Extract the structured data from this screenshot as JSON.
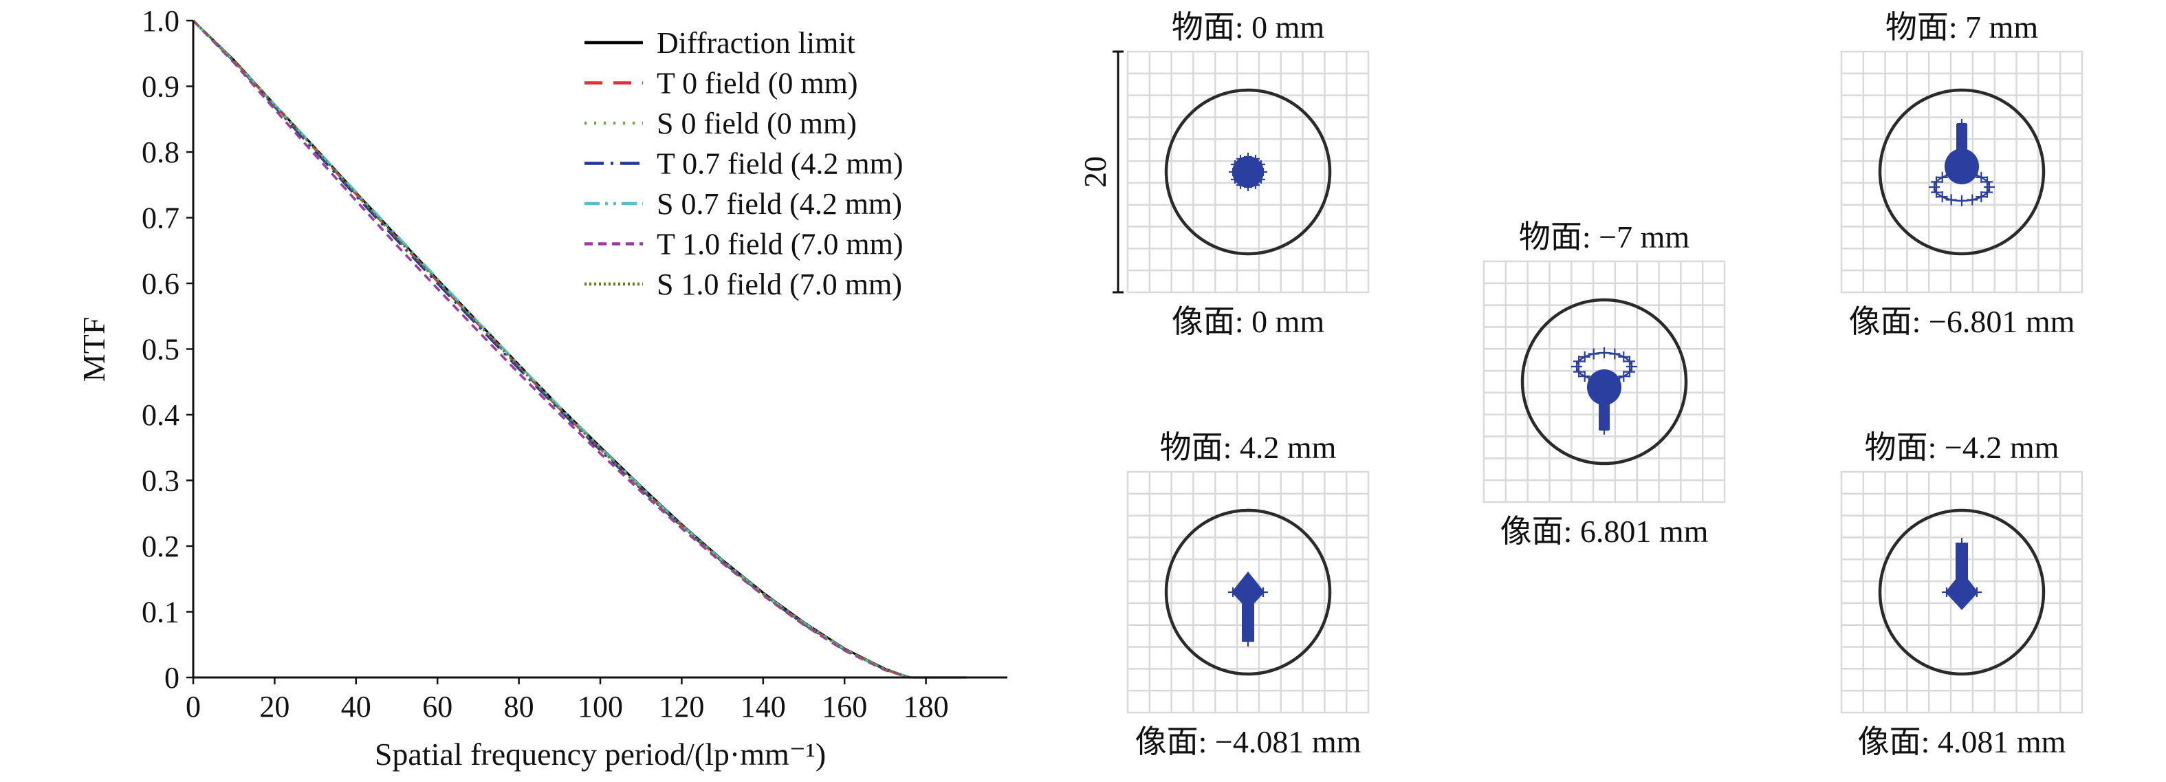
{
  "chart_data": [
    {
      "type": "line",
      "title": "",
      "xlabel": "Spatial frequency period/(lp·mm⁻¹)",
      "ylabel": "MTF",
      "xlim": [
        0,
        200
      ],
      "ylim": [
        0,
        1.0
      ],
      "x_ticks": [
        "0",
        "20",
        "40",
        "60",
        "80",
        "100",
        "120",
        "140",
        "160",
        "180"
      ],
      "y_ticks": [
        "0",
        "0.1",
        "0.2",
        "0.3",
        "0.4",
        "0.5",
        "0.6",
        "0.7",
        "0.8",
        "0.9",
        "1.0"
      ],
      "grid": false,
      "legend_position": "top-right",
      "series": [
        {
          "name": "Diffraction limit",
          "color": "#000000",
          "dash": "solid",
          "points": [
            [
              0,
              1.0
            ],
            [
              10,
              0.94
            ],
            [
              20,
              0.872
            ],
            [
              30,
              0.806
            ],
            [
              40,
              0.738
            ],
            [
              50,
              0.672
            ],
            [
              60,
              0.606
            ],
            [
              70,
              0.541
            ],
            [
              80,
              0.476
            ],
            [
              90,
              0.412
            ],
            [
              100,
              0.351
            ],
            [
              110,
              0.291
            ],
            [
              120,
              0.233
            ],
            [
              130,
              0.179
            ],
            [
              140,
              0.129
            ],
            [
              150,
              0.084
            ],
            [
              160,
              0.044
            ],
            [
              170,
              0.013
            ],
            [
              176,
              0.0
            ],
            [
              190,
              0.0
            ]
          ]
        },
        {
          "name": "T 0 field (0 mm)",
          "color": "#e0303a",
          "dash": "long-dash",
          "points": [
            [
              0,
              1.0
            ],
            [
              10,
              0.939
            ],
            [
              20,
              0.871
            ],
            [
              30,
              0.804
            ],
            [
              40,
              0.736
            ],
            [
              50,
              0.669
            ],
            [
              60,
              0.603
            ],
            [
              70,
              0.538
            ],
            [
              80,
              0.473
            ],
            [
              90,
              0.409
            ],
            [
              100,
              0.348
            ],
            [
              110,
              0.288
            ],
            [
              120,
              0.231
            ],
            [
              130,
              0.177
            ],
            [
              140,
              0.127
            ],
            [
              150,
              0.082
            ],
            [
              160,
              0.043
            ],
            [
              170,
              0.012
            ],
            [
              176,
              0.0
            ]
          ]
        },
        {
          "name": "S 0 field (0 mm)",
          "color": "#5db33a",
          "dash": "dotted",
          "points": [
            [
              0,
              1.0
            ],
            [
              10,
              0.939
            ],
            [
              20,
              0.871
            ],
            [
              30,
              0.804
            ],
            [
              40,
              0.736
            ],
            [
              50,
              0.669
            ],
            [
              60,
              0.603
            ],
            [
              70,
              0.538
            ],
            [
              80,
              0.473
            ],
            [
              90,
              0.409
            ],
            [
              100,
              0.348
            ],
            [
              110,
              0.288
            ],
            [
              120,
              0.231
            ],
            [
              130,
              0.177
            ],
            [
              140,
              0.127
            ],
            [
              150,
              0.082
            ],
            [
              160,
              0.043
            ],
            [
              170,
              0.012
            ],
            [
              176,
              0.0
            ]
          ]
        },
        {
          "name": "T 0.7 field (4.2 mm)",
          "color": "#1f3a93",
          "dash": "dash-dot",
          "points": [
            [
              0,
              1.0
            ],
            [
              10,
              0.938
            ],
            [
              20,
              0.869
            ],
            [
              30,
              0.801
            ],
            [
              40,
              0.733
            ],
            [
              50,
              0.666
            ],
            [
              60,
              0.6
            ],
            [
              70,
              0.535
            ],
            [
              80,
              0.47
            ],
            [
              90,
              0.407
            ],
            [
              100,
              0.346
            ],
            [
              110,
              0.287
            ],
            [
              120,
              0.23
            ],
            [
              130,
              0.176
            ],
            [
              140,
              0.126
            ],
            [
              150,
              0.081
            ],
            [
              160,
              0.042
            ],
            [
              170,
              0.012
            ],
            [
              176,
              0.0
            ]
          ]
        },
        {
          "name": "S 0.7 field (4.2 mm)",
          "color": "#4fc1c9",
          "dash": "dash-dot-dot",
          "points": [
            [
              0,
              1.0
            ],
            [
              10,
              0.939
            ],
            [
              20,
              0.872
            ],
            [
              30,
              0.806
            ],
            [
              40,
              0.739
            ],
            [
              50,
              0.673
            ],
            [
              60,
              0.607
            ],
            [
              70,
              0.541
            ],
            [
              80,
              0.476
            ],
            [
              90,
              0.412
            ],
            [
              100,
              0.35
            ],
            [
              110,
              0.29
            ],
            [
              120,
              0.232
            ],
            [
              130,
              0.178
            ],
            [
              140,
              0.128
            ],
            [
              150,
              0.083
            ],
            [
              160,
              0.043
            ],
            [
              170,
              0.012
            ],
            [
              176,
              0.0
            ]
          ]
        },
        {
          "name": "T 1.0 field (7.0 mm)",
          "color": "#9b3ea0",
          "dash": "short-dash",
          "points": [
            [
              0,
              1.0
            ],
            [
              10,
              0.936
            ],
            [
              20,
              0.865
            ],
            [
              30,
              0.795
            ],
            [
              40,
              0.726
            ],
            [
              50,
              0.658
            ],
            [
              60,
              0.592
            ],
            [
              70,
              0.527
            ],
            [
              80,
              0.463
            ],
            [
              90,
              0.401
            ],
            [
              100,
              0.341
            ],
            [
              110,
              0.283
            ],
            [
              120,
              0.227
            ],
            [
              130,
              0.174
            ],
            [
              140,
              0.125
            ],
            [
              150,
              0.08
            ],
            [
              160,
              0.041
            ],
            [
              170,
              0.011
            ],
            [
              176,
              0.0
            ]
          ]
        },
        {
          "name": "S 1.0 field (7.0 mm)",
          "color": "#6b7a1f",
          "dash": "fine-dotted",
          "points": [
            [
              0,
              1.0
            ],
            [
              10,
              0.939
            ],
            [
              20,
              0.871
            ],
            [
              30,
              0.804
            ],
            [
              40,
              0.736
            ],
            [
              50,
              0.669
            ],
            [
              60,
              0.603
            ],
            [
              70,
              0.538
            ],
            [
              80,
              0.473
            ],
            [
              90,
              0.409
            ],
            [
              100,
              0.348
            ],
            [
              110,
              0.288
            ],
            [
              120,
              0.231
            ],
            [
              130,
              0.177
            ],
            [
              140,
              0.127
            ],
            [
              150,
              0.082
            ],
            [
              160,
              0.043
            ],
            [
              170,
              0.012
            ],
            [
              176,
              0.0
            ]
          ]
        }
      ]
    },
    {
      "type": "spot-diagrams",
      "scale_label": "20",
      "grid": true,
      "panels": [
        {
          "id": "spot-field-0",
          "object_label": "物面: 0 mm",
          "image_label": "像面: 0 mm",
          "shape": "dot"
        },
        {
          "id": "spot-field-pos4-2",
          "object_label": "物面: 4.2 mm",
          "image_label": "像面: −4.081 mm",
          "shape": "diamond"
        },
        {
          "id": "spot-field-neg7",
          "object_label": "物面: −7 mm",
          "image_label": "像面: 6.801 mm",
          "shape": "comet-down"
        },
        {
          "id": "spot-field-pos7",
          "object_label": "物面: 7 mm",
          "image_label": "像面: −6.801 mm",
          "shape": "comet-up"
        },
        {
          "id": "spot-field-neg4-2",
          "object_label": "物面: −4.2 mm",
          "image_label": "像面: 4.081 mm",
          "shape": "diamond-up"
        }
      ],
      "spot_color": "#2b3fa0",
      "airy_circle_color": "#2a2a2a"
    }
  ]
}
